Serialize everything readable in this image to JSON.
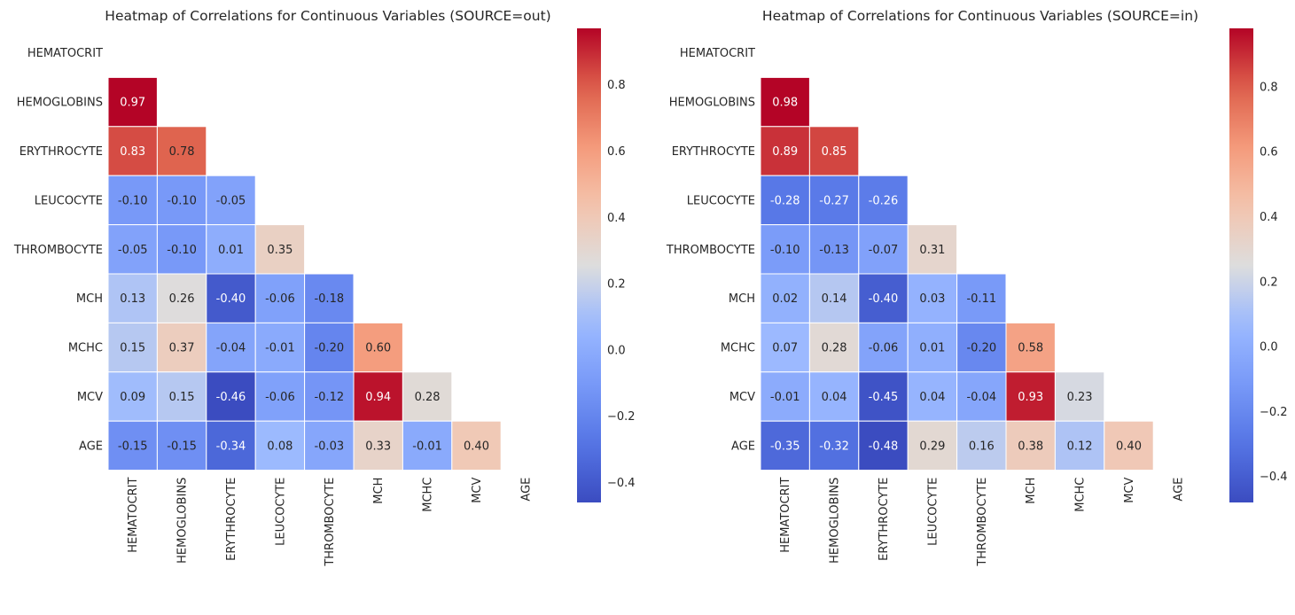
{
  "chart_data": [
    {
      "type": "heatmap",
      "title": "Heatmap of Correlations for Continuous Variables (SOURCE=out)",
      "variables": [
        "HEMATOCRIT",
        "HEMOGLOBINS",
        "ERYTHROCYTE",
        "LEUCOCYTE",
        "THROMBOCYTE",
        "MCH",
        "MCHC",
        "MCV",
        "AGE"
      ],
      "mask": "upper-triangle-and-diagonal",
      "colormap": "coolwarm",
      "colorbar": {
        "min": -0.46,
        "max": 0.97,
        "ticks": [
          -0.4,
          -0.2,
          0.0,
          0.2,
          0.4,
          0.6,
          0.8
        ],
        "tick_labels": [
          "−0.4",
          "−0.2",
          "0.0",
          "0.2",
          "0.4",
          "0.6",
          "0.8"
        ]
      },
      "values": [
        [
          null,
          null,
          null,
          null,
          null,
          null,
          null,
          null,
          null
        ],
        [
          0.97,
          null,
          null,
          null,
          null,
          null,
          null,
          null,
          null
        ],
        [
          0.83,
          0.78,
          null,
          null,
          null,
          null,
          null,
          null,
          null
        ],
        [
          -0.1,
          -0.1,
          -0.05,
          null,
          null,
          null,
          null,
          null,
          null
        ],
        [
          -0.05,
          -0.1,
          0.01,
          0.35,
          null,
          null,
          null,
          null,
          null
        ],
        [
          0.13,
          0.26,
          -0.4,
          -0.06,
          -0.18,
          null,
          null,
          null,
          null
        ],
        [
          0.15,
          0.37,
          -0.04,
          -0.01,
          -0.2,
          0.6,
          null,
          null,
          null
        ],
        [
          0.09,
          0.15,
          -0.46,
          -0.06,
          -0.12,
          0.94,
          0.28,
          null,
          null
        ],
        [
          -0.15,
          -0.15,
          -0.34,
          0.08,
          -0.03,
          0.33,
          -0.01,
          0.4,
          null
        ]
      ]
    },
    {
      "type": "heatmap",
      "title": "Heatmap of Correlations for Continuous Variables (SOURCE=in)",
      "variables": [
        "HEMATOCRIT",
        "HEMOGLOBINS",
        "ERYTHROCYTE",
        "LEUCOCYTE",
        "THROMBOCYTE",
        "MCH",
        "MCHC",
        "MCV",
        "AGE"
      ],
      "mask": "upper-triangle-and-diagonal",
      "colormap": "coolwarm",
      "colorbar": {
        "min": -0.48,
        "max": 0.98,
        "ticks": [
          -0.4,
          -0.2,
          0.0,
          0.2,
          0.4,
          0.6,
          0.8
        ],
        "tick_labels": [
          "−0.4",
          "−0.2",
          "0.0",
          "0.2",
          "0.4",
          "0.6",
          "0.8"
        ]
      },
      "values": [
        [
          null,
          null,
          null,
          null,
          null,
          null,
          null,
          null,
          null
        ],
        [
          0.98,
          null,
          null,
          null,
          null,
          null,
          null,
          null,
          null
        ],
        [
          0.89,
          0.85,
          null,
          null,
          null,
          null,
          null,
          null,
          null
        ],
        [
          -0.28,
          -0.27,
          -0.26,
          null,
          null,
          null,
          null,
          null,
          null
        ],
        [
          -0.1,
          -0.13,
          -0.07,
          0.31,
          null,
          null,
          null,
          null,
          null
        ],
        [
          0.02,
          0.14,
          -0.4,
          0.03,
          -0.11,
          null,
          null,
          null,
          null
        ],
        [
          0.07,
          0.28,
          -0.06,
          0.01,
          -0.2,
          0.58,
          null,
          null,
          null
        ],
        [
          -0.01,
          0.04,
          -0.45,
          0.04,
          -0.04,
          0.93,
          0.23,
          null,
          null
        ],
        [
          -0.35,
          -0.32,
          -0.48,
          0.29,
          0.16,
          0.38,
          0.12,
          0.4,
          null
        ]
      ]
    }
  ]
}
